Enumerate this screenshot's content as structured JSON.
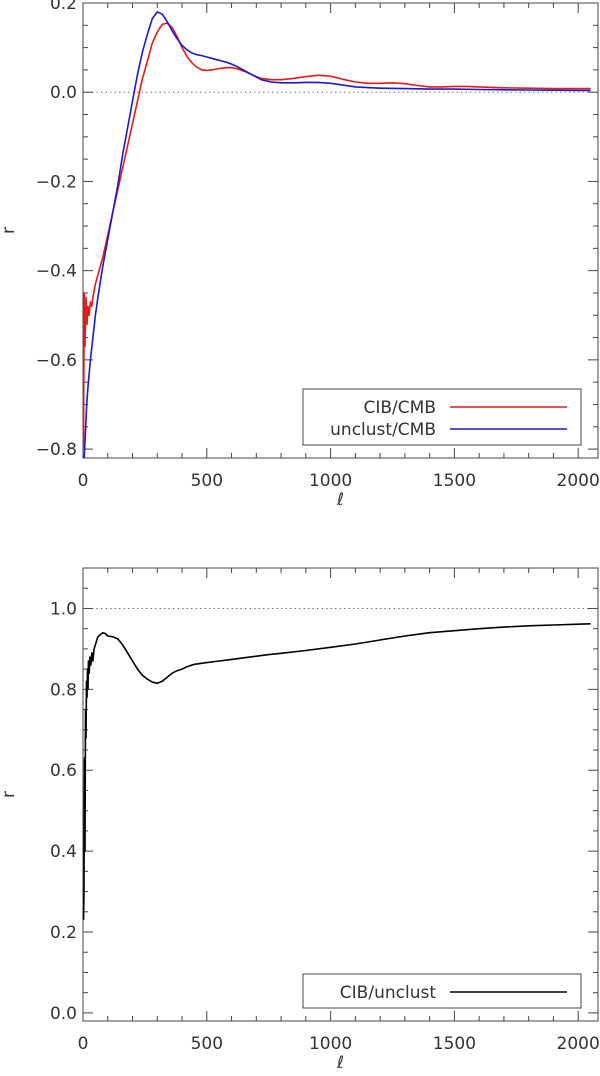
{
  "chart_data": [
    {
      "type": "line",
      "xlabel": "ℓ",
      "ylabel": "r",
      "xlim": [
        0,
        2080
      ],
      "ylim": [
        -0.82,
        0.2
      ],
      "xticks": [
        0,
        500,
        1000,
        1500,
        2000
      ],
      "xtick_labels": [
        "0",
        "500",
        "1000",
        "1500",
        "2000"
      ],
      "yticks": [
        -0.8,
        -0.6,
        -0.4,
        -0.2,
        0.0,
        0.2
      ],
      "ytick_labels": [
        "−0.8",
        "−0.6",
        "−0.4",
        "−0.2",
        "0.0",
        "0.2"
      ],
      "reference_line": {
        "y": 0.0,
        "style": "dotted"
      },
      "legend_position": "bottom-right",
      "series": [
        {
          "name": "CIB/CMB",
          "color": "#e8191a",
          "x": [
            2,
            5,
            8,
            12,
            16,
            20,
            25,
            30,
            35,
            40,
            50,
            60,
            70,
            80,
            100,
            120,
            140,
            160,
            180,
            200,
            220,
            240,
            260,
            280,
            300,
            320,
            340,
            360,
            380,
            400,
            420,
            440,
            460,
            480,
            500,
            520,
            540,
            560,
            580,
            600,
            620,
            640,
            660,
            680,
            700,
            720,
            760,
            800,
            850,
            900,
            950,
            1000,
            1050,
            1100,
            1150,
            1200,
            1250,
            1300,
            1350,
            1400,
            1450,
            1500,
            1550,
            1600,
            1700,
            1800,
            1900,
            2000,
            2050
          ],
          "y": [
            -0.8,
            -0.45,
            -0.57,
            -0.46,
            -0.52,
            -0.48,
            -0.5,
            -0.47,
            -0.48,
            -0.46,
            -0.43,
            -0.41,
            -0.39,
            -0.37,
            -0.32,
            -0.27,
            -0.22,
            -0.17,
            -0.12,
            -0.07,
            -0.02,
            0.03,
            0.07,
            0.11,
            0.135,
            0.152,
            0.155,
            0.145,
            0.125,
            0.1,
            0.08,
            0.066,
            0.056,
            0.05,
            0.049,
            0.05,
            0.052,
            0.054,
            0.055,
            0.055,
            0.053,
            0.049,
            0.045,
            0.04,
            0.035,
            0.031,
            0.028,
            0.028,
            0.031,
            0.035,
            0.038,
            0.036,
            0.029,
            0.023,
            0.02,
            0.02,
            0.021,
            0.019,
            0.015,
            0.012,
            0.012,
            0.013,
            0.013,
            0.012,
            0.01,
            0.009,
            0.008,
            0.008,
            0.008
          ]
        },
        {
          "name": "unclust/CMB",
          "color": "#1a1acc",
          "x": [
            5,
            10,
            15,
            20,
            30,
            40,
            50,
            60,
            80,
            100,
            120,
            140,
            160,
            180,
            200,
            220,
            240,
            260,
            280,
            300,
            320,
            340,
            360,
            380,
            400,
            420,
            440,
            460,
            480,
            500,
            520,
            540,
            560,
            580,
            600,
            620,
            640,
            660,
            680,
            700,
            720,
            760,
            800,
            850,
            900,
            950,
            1000,
            1050,
            1100,
            1200,
            1300,
            1400,
            1500,
            1600,
            1800,
            2000,
            2050
          ],
          "y": [
            -0.82,
            -0.76,
            -0.7,
            -0.66,
            -0.6,
            -0.55,
            -0.5,
            -0.46,
            -0.39,
            -0.33,
            -0.27,
            -0.21,
            -0.14,
            -0.08,
            -0.02,
            0.04,
            0.09,
            0.13,
            0.165,
            0.18,
            0.175,
            0.158,
            0.138,
            0.12,
            0.105,
            0.095,
            0.088,
            0.084,
            0.082,
            0.079,
            0.076,
            0.073,
            0.07,
            0.067,
            0.063,
            0.058,
            0.052,
            0.046,
            0.04,
            0.034,
            0.028,
            0.023,
            0.021,
            0.021,
            0.022,
            0.022,
            0.02,
            0.016,
            0.012,
            0.009,
            0.008,
            0.007,
            0.007,
            0.006,
            0.005,
            0.004,
            0.004
          ]
        }
      ]
    },
    {
      "type": "line",
      "xlabel": "ℓ",
      "ylabel": "r",
      "xlim": [
        0,
        2080
      ],
      "ylim": [
        -0.02,
        1.1
      ],
      "xticks": [
        0,
        500,
        1000,
        1500,
        2000
      ],
      "xtick_labels": [
        "0",
        "500",
        "1000",
        "1500",
        "2000"
      ],
      "yticks": [
        0.0,
        0.2,
        0.4,
        0.6,
        0.8,
        1.0
      ],
      "ytick_labels": [
        "0.0",
        "0.2",
        "0.4",
        "0.6",
        "0.8",
        "1.0"
      ],
      "reference_line": {
        "y": 1.0,
        "style": "dotted"
      },
      "legend_position": "bottom-right",
      "series": [
        {
          "name": "CIB/unclust",
          "color": "#000000",
          "x": [
            2,
            4,
            6,
            8,
            10,
            12,
            14,
            16,
            18,
            20,
            22,
            25,
            28,
            32,
            36,
            40,
            45,
            50,
            55,
            60,
            70,
            80,
            90,
            100,
            120,
            140,
            160,
            180,
            200,
            220,
            240,
            260,
            280,
            300,
            320,
            340,
            360,
            380,
            400,
            420,
            450,
            500,
            550,
            600,
            650,
            700,
            750,
            800,
            900,
            1000,
            1100,
            1200,
            1300,
            1400,
            1500,
            1600,
            1700,
            1800,
            1900,
            2000,
            2050
          ],
          "y": [
            0.23,
            0.3,
            0.63,
            0.4,
            0.75,
            0.68,
            0.82,
            0.78,
            0.85,
            0.8,
            0.87,
            0.84,
            0.88,
            0.86,
            0.89,
            0.87,
            0.9,
            0.91,
            0.92,
            0.93,
            0.935,
            0.94,
            0.938,
            0.932,
            0.93,
            0.925,
            0.91,
            0.89,
            0.87,
            0.85,
            0.835,
            0.825,
            0.818,
            0.815,
            0.82,
            0.83,
            0.84,
            0.846,
            0.85,
            0.856,
            0.862,
            0.866,
            0.87,
            0.874,
            0.878,
            0.882,
            0.886,
            0.889,
            0.896,
            0.904,
            0.912,
            0.922,
            0.932,
            0.94,
            0.945,
            0.95,
            0.954,
            0.957,
            0.959,
            0.961,
            0.962
          ]
        }
      ]
    }
  ]
}
